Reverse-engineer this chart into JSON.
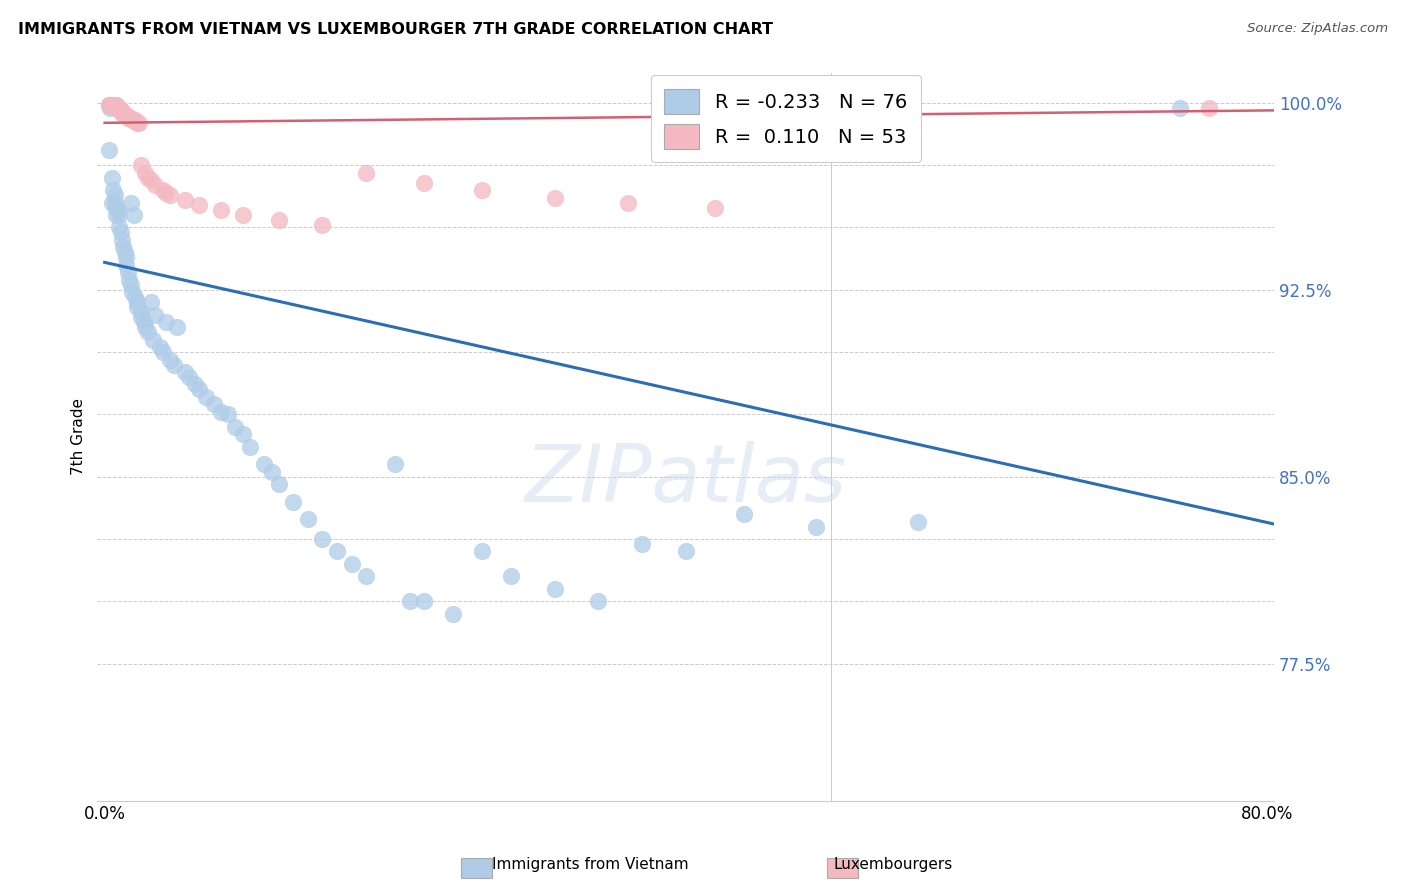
{
  "title": "IMMIGRANTS FROM VIETNAM VS LUXEMBOURGER 7TH GRADE CORRELATION CHART",
  "source": "Source: ZipAtlas.com",
  "ylabel": "7th Grade",
  "blue_color": "#aecce8",
  "blue_line_color": "#2e6db4",
  "pink_color": "#f4b8c1",
  "pink_line_color": "#d45f72",
  "watermark": "ZIPatlas",
  "legend_blue_R": "-0.233",
  "legend_blue_N": "76",
  "legend_pink_R": "0.110",
  "legend_pink_N": "53",
  "ytick_vals": [
    0.775,
    0.8,
    0.825,
    0.85,
    0.875,
    0.9,
    0.925,
    0.95,
    0.975,
    1.0
  ],
  "ytick_labels_shown": {
    "0.775": "77.5%",
    "0.85": "85.0%",
    "0.925": "92.5%",
    "1.00": "100.0%"
  },
  "xlim": [
    -0.005,
    0.805
  ],
  "ylim": [
    0.72,
    1.012
  ],
  "blue_line_x0": 0.0,
  "blue_line_x1": 0.805,
  "blue_line_y0": 0.936,
  "blue_line_y1": 0.831,
  "pink_line_x0": 0.0,
  "pink_line_x1": 0.805,
  "pink_line_y0": 0.992,
  "pink_line_y1": 0.997,
  "blue_x": [
    0.003,
    0.003,
    0.004,
    0.005,
    0.005,
    0.006,
    0.007,
    0.007,
    0.008,
    0.008,
    0.009,
    0.01,
    0.01,
    0.011,
    0.012,
    0.013,
    0.014,
    0.015,
    0.015,
    0.016,
    0.017,
    0.018,
    0.018,
    0.019,
    0.02,
    0.021,
    0.022,
    0.022,
    0.025,
    0.025,
    0.027,
    0.028,
    0.03,
    0.032,
    0.033,
    0.035,
    0.038,
    0.04,
    0.042,
    0.045,
    0.048,
    0.05,
    0.055,
    0.058,
    0.062,
    0.065,
    0.07,
    0.075,
    0.08,
    0.085,
    0.09,
    0.095,
    0.1,
    0.11,
    0.115,
    0.12,
    0.13,
    0.14,
    0.15,
    0.16,
    0.17,
    0.18,
    0.2,
    0.21,
    0.22,
    0.24,
    0.26,
    0.28,
    0.31,
    0.34,
    0.37,
    0.4,
    0.44,
    0.49,
    0.56,
    0.74
  ],
  "blue_y": [
    0.999,
    0.981,
    0.998,
    0.97,
    0.96,
    0.965,
    0.963,
    0.96,
    0.958,
    0.955,
    0.957,
    0.955,
    0.95,
    0.948,
    0.945,
    0.942,
    0.94,
    0.938,
    0.935,
    0.932,
    0.929,
    0.927,
    0.96,
    0.924,
    0.955,
    0.922,
    0.92,
    0.918,
    0.916,
    0.914,
    0.912,
    0.91,
    0.908,
    0.92,
    0.905,
    0.915,
    0.902,
    0.9,
    0.912,
    0.897,
    0.895,
    0.91,
    0.892,
    0.89,
    0.887,
    0.885,
    0.882,
    0.879,
    0.876,
    0.875,
    0.87,
    0.867,
    0.862,
    0.855,
    0.852,
    0.847,
    0.84,
    0.833,
    0.825,
    0.82,
    0.815,
    0.81,
    0.855,
    0.8,
    0.8,
    0.795,
    0.82,
    0.81,
    0.805,
    0.8,
    0.823,
    0.82,
    0.835,
    0.83,
    0.832,
    0.998
  ],
  "pink_x": [
    0.003,
    0.004,
    0.004,
    0.005,
    0.005,
    0.006,
    0.006,
    0.007,
    0.007,
    0.008,
    0.008,
    0.008,
    0.009,
    0.009,
    0.01,
    0.01,
    0.011,
    0.011,
    0.012,
    0.012,
    0.013,
    0.014,
    0.014,
    0.015,
    0.016,
    0.017,
    0.018,
    0.019,
    0.02,
    0.021,
    0.022,
    0.024,
    0.025,
    0.028,
    0.03,
    0.032,
    0.035,
    0.04,
    0.042,
    0.045,
    0.055,
    0.065,
    0.08,
    0.095,
    0.12,
    0.15,
    0.18,
    0.22,
    0.26,
    0.31,
    0.36,
    0.42,
    0.76
  ],
  "pink_y": [
    0.999,
    0.999,
    0.999,
    0.999,
    0.999,
    0.999,
    0.999,
    0.999,
    0.999,
    0.999,
    0.999,
    0.998,
    0.998,
    0.998,
    0.998,
    0.997,
    0.997,
    0.997,
    0.996,
    0.996,
    0.996,
    0.995,
    0.995,
    0.995,
    0.994,
    0.994,
    0.994,
    0.993,
    0.993,
    0.993,
    0.992,
    0.992,
    0.975,
    0.972,
    0.97,
    0.969,
    0.967,
    0.965,
    0.964,
    0.963,
    0.961,
    0.959,
    0.957,
    0.955,
    0.953,
    0.951,
    0.972,
    0.968,
    0.965,
    0.962,
    0.96,
    0.958,
    0.998
  ]
}
